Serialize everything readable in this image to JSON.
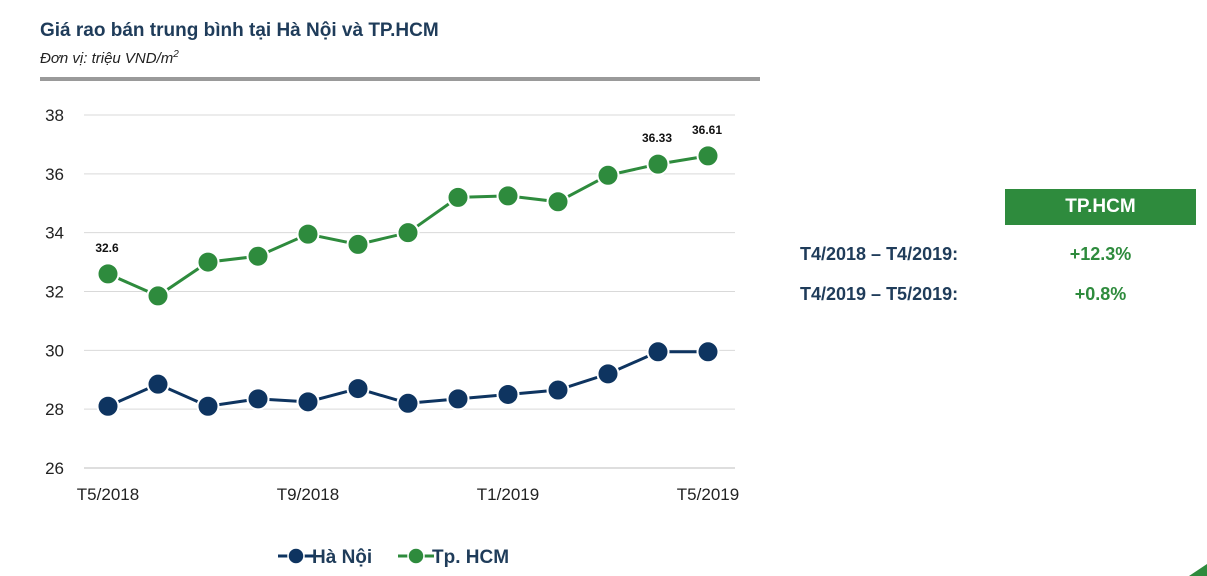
{
  "header": {
    "title": "Giá rao bán trung bình tại Hà Nội và TP.HCM",
    "subtitle_prefix": "Đơn vị: triệu VND/m",
    "subtitle_sup": "2"
  },
  "chart_data": {
    "type": "line",
    "ylim": [
      26,
      38
    ],
    "yticks": [
      26,
      28,
      30,
      32,
      34,
      36,
      38
    ],
    "x": [
      "T5/2018",
      "T6/2018",
      "T7/2018",
      "T8/2018",
      "T9/2018",
      "T10/2018",
      "T11/2018",
      "T12/2018",
      "T1/2019",
      "T2/2019",
      "T3/2019",
      "T4/2019",
      "T5/2019"
    ],
    "xtick_labels": [
      "T5/2018",
      "T9/2018",
      "T1/2019",
      "T5/2019"
    ],
    "grid": true,
    "legend_position": "bottom",
    "series": [
      {
        "name": "Hà Nội",
        "color": "#0e3460",
        "values": [
          28.1,
          28.85,
          28.1,
          28.35,
          28.25,
          28.7,
          28.2,
          28.35,
          28.5,
          28.65,
          29.2,
          29.95,
          29.95
        ],
        "labels": {}
      },
      {
        "name": "Tp. HCM",
        "color": "#2e8b3d",
        "values": [
          32.6,
          31.85,
          33.0,
          33.2,
          33.95,
          33.6,
          34.0,
          35.2,
          35.25,
          35.05,
          35.95,
          36.33,
          36.61
        ],
        "labels": {
          "0": "32.6",
          "11": "36.33",
          "12": "36.61"
        }
      }
    ]
  },
  "side_panel": {
    "header": "TP.HCM",
    "rows": [
      {
        "label": "T4/2018 – T4/2019:",
        "value": "+12.3%"
      },
      {
        "label": "T4/2019 – T5/2019:",
        "value": "+0.8%"
      }
    ]
  }
}
